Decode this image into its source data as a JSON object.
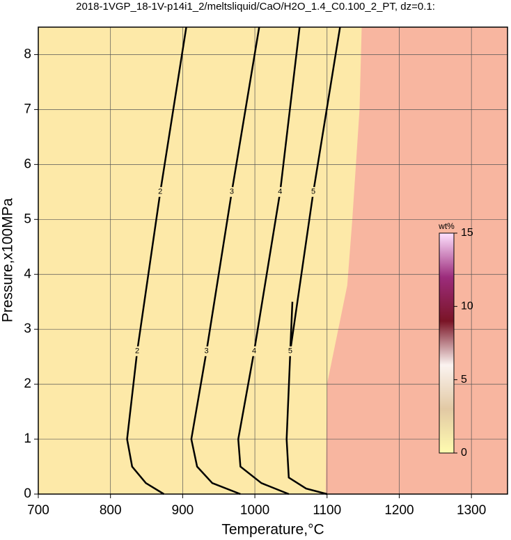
{
  "chart_data": {
    "type": "contour",
    "title": "2018-1VGP_18-1V-p14i1_2/meltsliquid/CaO/H2O_1.4_C0.100_2_PT, dz=0.1:",
    "x_label": "Temperature,°C",
    "y_label": "Pressure,x100MPa",
    "xlim": [
      700,
      1350
    ],
    "ylim": [
      0,
      8.5
    ],
    "xticks": [
      700,
      800,
      900,
      1000,
      1100,
      1200,
      1300
    ],
    "yticks": [
      0,
      1,
      2,
      3,
      4,
      5,
      6,
      7,
      8
    ],
    "grid": true,
    "low_color": "#fde9a8",
    "high_color": "#f8b6a0",
    "fill_boundary": {
      "x": [
        1098,
        1100,
        1128,
        1135,
        1145,
        1148
      ],
      "y": [
        0,
        2,
        3.8,
        5,
        7,
        8.5
      ]
    },
    "contours": [
      {
        "level": 2,
        "x": [
          905,
          869,
          837,
          823,
          830,
          849,
          874
        ],
        "y": [
          8.5,
          5.5,
          2.6,
          1,
          0.5,
          0.2,
          0
        ]
      },
      {
        "level": 3,
        "x": [
          1006,
          968,
          933,
          912,
          920,
          941,
          980
        ],
        "y": [
          8.5,
          5.5,
          2.6,
          1,
          0.5,
          0.2,
          0
        ]
      },
      {
        "level": 4,
        "x": [
          1062,
          1035,
          999,
          977,
          980,
          1009,
          1047
        ],
        "y": [
          8.5,
          5.5,
          2.6,
          1,
          0.5,
          0.2,
          0
        ]
      },
      {
        "level": 5,
        "x": [
          1118,
          1081,
          1049,
          1052,
          1044,
          1047,
          1071,
          1100
        ],
        "y": [
          8.5,
          5.5,
          2.6,
          3.5,
          1,
          0.3,
          0.1,
          0
        ]
      }
    ],
    "colorbar": {
      "label": "wt%",
      "lim": [
        0,
        15
      ],
      "ticks": [
        0,
        5,
        10,
        15
      ],
      "colors": [
        "#fffcb0",
        "#e2c9a4",
        "#fbf3f0",
        "#7a1426",
        "#9c2c7c",
        "#ffe2ff"
      ]
    }
  }
}
